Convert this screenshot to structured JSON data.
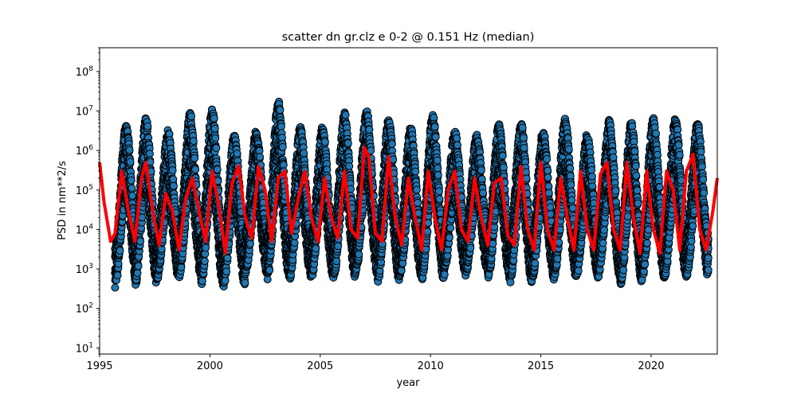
{
  "chart_data": {
    "type": "scatter",
    "title": "scatter dn gr.clz e 0-2 @ 0.151 Hz (median)",
    "xlabel": "year",
    "ylabel": "PSD in nm**2/s",
    "xlim": [
      1995,
      2023
    ],
    "ylim": [
      7,
      400000000
    ],
    "yscale": "log",
    "grid": false,
    "x_ticks": [
      {
        "value": 1995,
        "label": "1995"
      },
      {
        "value": 2000,
        "label": "2000"
      },
      {
        "value": 2005,
        "label": "2005"
      },
      {
        "value": 2010,
        "label": "2010"
      },
      {
        "value": 2015,
        "label": "2015"
      },
      {
        "value": 2020,
        "label": "2020"
      }
    ],
    "y_ticks": [
      {
        "value": 10,
        "base": "10",
        "exp": "1"
      },
      {
        "value": 100,
        "base": "10",
        "exp": "2"
      },
      {
        "value": 1000,
        "base": "10",
        "exp": "3"
      },
      {
        "value": 10000,
        "base": "10",
        "exp": "4"
      },
      {
        "value": 100000,
        "base": "10",
        "exp": "5"
      },
      {
        "value": 1000000,
        "base": "10",
        "exp": "6"
      },
      {
        "value": 10000000,
        "base": "10",
        "exp": "7"
      },
      {
        "value": 100000000,
        "base": "10",
        "exp": "8"
      }
    ],
    "series": [
      {
        "kind": "scatter",
        "color": "#1f77b4",
        "edgecolor": "#000000",
        "peak_years": [
          1996.2,
          1997.1,
          1998.1,
          1999.1,
          2000.1,
          2001.1,
          2002.1,
          2003.1,
          2004.1,
          2005.1,
          2006.1,
          2007.1,
          2008.1,
          2009.1,
          2010.1,
          2011.1,
          2012.1,
          2013.1,
          2014.1,
          2015.1,
          2016.1,
          2017.1,
          2018.1,
          2019.1,
          2020.1,
          2021.1,
          2022.1
        ],
        "peak_max": [
          3500000,
          5000000,
          2500000,
          7000000,
          9000000,
          2000000,
          2500000,
          14000000,
          3000000,
          3000000,
          7000000,
          8000000,
          5000000,
          3000000,
          6000000,
          2500000,
          2000000,
          3500000,
          4000000,
          2500000,
          5000000,
          2000000,
          4500000,
          4000000,
          5000000,
          5000000,
          4000000
        ],
        "trough_min": [
          450,
          500,
          700,
          800,
          500,
          450,
          900,
          700,
          700,
          800,
          700,
          900,
          600,
          800,
          700,
          900,
          1000,
          700,
          600,
          700,
          800,
          800,
          800,
          500,
          800,
          800,
          800
        ]
      },
      {
        "kind": "median-line",
        "color": "#ff0000",
        "x": [
          1995.0,
          1995.2,
          1995.5,
          1995.7,
          1996.0,
          1996.3,
          1996.6,
          1996.9,
          1997.1,
          1997.4,
          1997.7,
          1998.0,
          1998.3,
          1998.6,
          1998.9,
          1999.2,
          1999.5,
          1999.8,
          2000.1,
          2000.4,
          2000.7,
          2001.0,
          2001.3,
          2001.6,
          2001.9,
          2002.2,
          2002.5,
          2002.8,
          2003.1,
          2003.4,
          2003.7,
          2004.0,
          2004.3,
          2004.6,
          2004.9,
          2005.2,
          2005.5,
          2005.8,
          2006.1,
          2006.4,
          2006.7,
          2007.0,
          2007.2,
          2007.5,
          2007.8,
          2008.1,
          2008.4,
          2008.7,
          2009.0,
          2009.3,
          2009.6,
          2009.9,
          2010.2,
          2010.5,
          2010.8,
          2011.1,
          2011.4,
          2011.7,
          2012.0,
          2012.3,
          2012.6,
          2012.9,
          2013.2,
          2013.5,
          2013.8,
          2014.1,
          2014.4,
          2014.7,
          2015.0,
          2015.3,
          2015.6,
          2015.9,
          2016.2,
          2016.5,
          2016.8,
          2017.1,
          2017.4,
          2017.7,
          2018.0,
          2018.3,
          2018.6,
          2018.9,
          2019.2,
          2019.5,
          2019.8,
          2020.1,
          2020.4,
          2020.7,
          2021.0,
          2021.3,
          2021.6,
          2021.9,
          2022.2,
          2022.5,
          2022.8,
          2023.0
        ],
        "y": [
          500000,
          50000,
          5000,
          8000,
          300000,
          30000,
          5000,
          200000,
          500000,
          30000,
          4000,
          80000,
          30000,
          3000,
          60000,
          200000,
          30000,
          5000,
          300000,
          40000,
          2500,
          150000,
          400000,
          20000,
          6000,
          400000,
          100000,
          5000,
          200000,
          300000,
          8000,
          60000,
          300000,
          20000,
          5000,
          200000,
          20000,
          6000,
          300000,
          10000,
          6000,
          1200000,
          700000,
          8000,
          5000,
          700000,
          20000,
          4000,
          200000,
          20000,
          3000,
          300000,
          20000,
          3000,
          100000,
          300000,
          10000,
          5000,
          200000,
          20000,
          4000,
          150000,
          200000,
          7000,
          4000,
          400000,
          10000,
          3000,
          500000,
          10000,
          3000,
          200000,
          20000,
          3000,
          300000,
          10000,
          3000,
          250000,
          500000,
          10000,
          3000,
          500000,
          20000,
          2500,
          300000,
          10000,
          2500,
          300000,
          100000,
          3000,
          300000,
          800000,
          10000,
          3000,
          30000,
          200000
        ]
      }
    ]
  }
}
